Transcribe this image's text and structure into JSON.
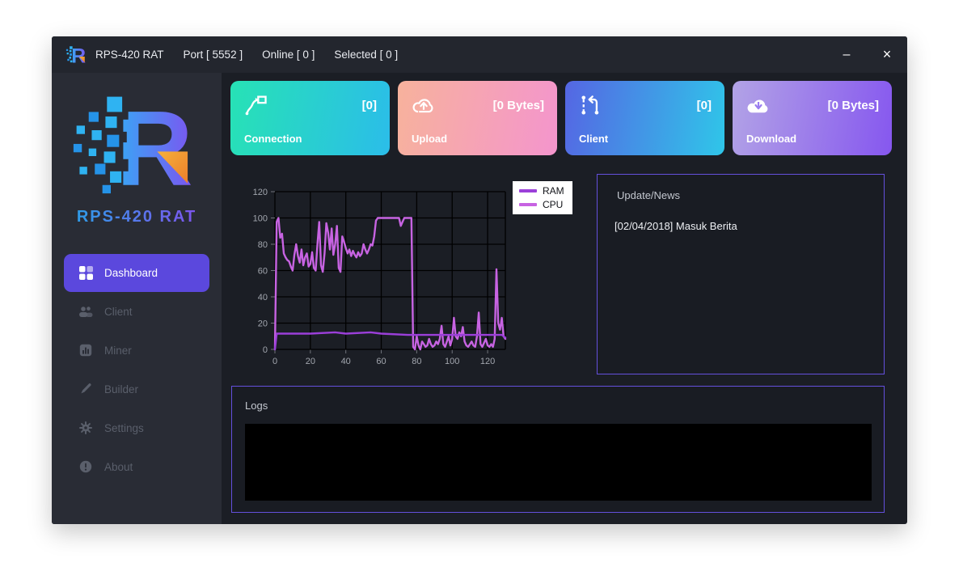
{
  "window": {
    "title": "RPS-420 RAT",
    "port": "Port [ 5552 ]",
    "online": "Online [ 0 ]",
    "selected": "Selected [ 0 ]",
    "minimize_glyph": "–",
    "close_glyph": "×"
  },
  "brand": {
    "letter": "R",
    "wordmark": "RPS-420 RAT"
  },
  "sidebar": {
    "active_color": "#5b48dd",
    "items": [
      {
        "label": "Dashboard",
        "icon": "dashboard-grid-icon",
        "active": true
      },
      {
        "label": "Client",
        "icon": "users-icon",
        "active": false
      },
      {
        "label": "Miner",
        "icon": "miner-chart-icon",
        "active": false
      },
      {
        "label": "Builder",
        "icon": "pencil-icon",
        "active": false
      },
      {
        "label": "Settings",
        "icon": "gear-icon",
        "active": false
      },
      {
        "label": "About",
        "icon": "info-icon",
        "active": false
      }
    ]
  },
  "cards": [
    {
      "label": "Connection",
      "value": "[0]",
      "icon": "connection-icon",
      "gradient": [
        "#27e2b5",
        "#2bbde9"
      ]
    },
    {
      "label": "Upload",
      "value": "[0 Bytes]",
      "icon": "upload-cloud-icon",
      "gradient": [
        "#f7b29c",
        "#f495cd"
      ]
    },
    {
      "label": "Client",
      "value": "[0]",
      "icon": "client-sync-icon",
      "gradient": [
        "#5566e3",
        "#2fc6e9"
      ]
    },
    {
      "label": "Download",
      "value": "[0 Bytes]",
      "icon": "download-cloud-icon",
      "gradient": [
        "#b2a3e6",
        "#8657ef"
      ]
    }
  ],
  "news": {
    "title": "Update/News",
    "entries": [
      "[02/04/2018] Masuk Berita"
    ]
  },
  "logs": {
    "title": "Logs"
  },
  "chart_data": {
    "type": "line",
    "title": "",
    "xlabel": "",
    "ylabel": "",
    "xlim": [
      0,
      130
    ],
    "ylim": [
      0,
      120
    ],
    "xticks": [
      0,
      20,
      40,
      60,
      80,
      100,
      120
    ],
    "yticks": [
      0,
      20,
      40,
      60,
      80,
      100,
      120
    ],
    "grid": true,
    "grid_color": "#000000",
    "legend_position": "top-right",
    "series": [
      {
        "name": "RAM",
        "color": "#9b3fd9",
        "points": [
          [
            0,
            0
          ],
          [
            1,
            12
          ],
          [
            20,
            12
          ],
          [
            34,
            13
          ],
          [
            40,
            12
          ],
          [
            54,
            13
          ],
          [
            60,
            12
          ],
          [
            75,
            11
          ],
          [
            100,
            11
          ],
          [
            120,
            11
          ],
          [
            128,
            11
          ],
          [
            130,
            9
          ]
        ]
      },
      {
        "name": "CPU",
        "color": "#c763e2",
        "points": [
          [
            0,
            0
          ],
          [
            1,
            97
          ],
          [
            2,
            100
          ],
          [
            3,
            85
          ],
          [
            4,
            88
          ],
          [
            5,
            73
          ],
          [
            6,
            70
          ],
          [
            7,
            68
          ],
          [
            8,
            67
          ],
          [
            9,
            63
          ],
          [
            10,
            60
          ],
          [
            11,
            72
          ],
          [
            12,
            80
          ],
          [
            13,
            71
          ],
          [
            14,
            66
          ],
          [
            15,
            76
          ],
          [
            16,
            64
          ],
          [
            17,
            70
          ],
          [
            18,
            73
          ],
          [
            19,
            63
          ],
          [
            20,
            65
          ],
          [
            21,
            74
          ],
          [
            22,
            62
          ],
          [
            23,
            60
          ],
          [
            24,
            80
          ],
          [
            25,
            97
          ],
          [
            26,
            64
          ],
          [
            27,
            59
          ],
          [
            28,
            73
          ],
          [
            29,
            96
          ],
          [
            30,
            89
          ],
          [
            31,
            76
          ],
          [
            32,
            92
          ],
          [
            33,
            72
          ],
          [
            34,
            80
          ],
          [
            35,
            94
          ],
          [
            36,
            62
          ],
          [
            37,
            59
          ],
          [
            38,
            86
          ],
          [
            39,
            82
          ],
          [
            40,
            77
          ],
          [
            41,
            73
          ],
          [
            42,
            76
          ],
          [
            43,
            71
          ],
          [
            44,
            75
          ],
          [
            45,
            72
          ],
          [
            46,
            70
          ],
          [
            47,
            74
          ],
          [
            48,
            71
          ],
          [
            49,
            73
          ],
          [
            50,
            80
          ],
          [
            51,
            76
          ],
          [
            52,
            73
          ],
          [
            53,
            76
          ],
          [
            54,
            80
          ],
          [
            55,
            79
          ],
          [
            56,
            86
          ],
          [
            57,
            98
          ],
          [
            58,
            100
          ],
          [
            62,
            100
          ],
          [
            66,
            100
          ],
          [
            70,
            100
          ],
          [
            71,
            94
          ],
          [
            72,
            97
          ],
          [
            73,
            100
          ],
          [
            77,
            100
          ],
          [
            78,
            2
          ],
          [
            79,
            0
          ],
          [
            80,
            10
          ],
          [
            81,
            3
          ],
          [
            82,
            0
          ],
          [
            83,
            6
          ],
          [
            84,
            4
          ],
          [
            85,
            2
          ],
          [
            86,
            3
          ],
          [
            87,
            8
          ],
          [
            88,
            4
          ],
          [
            89,
            2
          ],
          [
            90,
            3
          ],
          [
            91,
            6
          ],
          [
            92,
            4
          ],
          [
            93,
            8
          ],
          [
            94,
            18
          ],
          [
            95,
            4
          ],
          [
            96,
            2
          ],
          [
            97,
            6
          ],
          [
            98,
            10
          ],
          [
            99,
            3
          ],
          [
            100,
            8
          ],
          [
            101,
            24
          ],
          [
            102,
            10
          ],
          [
            103,
            8
          ],
          [
            104,
            13
          ],
          [
            105,
            10
          ],
          [
            106,
            17
          ],
          [
            107,
            6
          ],
          [
            108,
            3
          ],
          [
            109,
            2
          ],
          [
            110,
            4
          ],
          [
            111,
            6
          ],
          [
            112,
            3
          ],
          [
            113,
            2
          ],
          [
            114,
            10
          ],
          [
            115,
            28
          ],
          [
            116,
            4
          ],
          [
            117,
            2
          ],
          [
            118,
            5
          ],
          [
            119,
            8
          ],
          [
            120,
            3
          ],
          [
            121,
            2
          ],
          [
            122,
            4
          ],
          [
            123,
            2
          ],
          [
            124,
            8
          ],
          [
            125,
            61
          ],
          [
            126,
            20
          ],
          [
            127,
            15
          ],
          [
            128,
            24
          ],
          [
            129,
            10
          ],
          [
            130,
            8
          ]
        ]
      }
    ]
  }
}
